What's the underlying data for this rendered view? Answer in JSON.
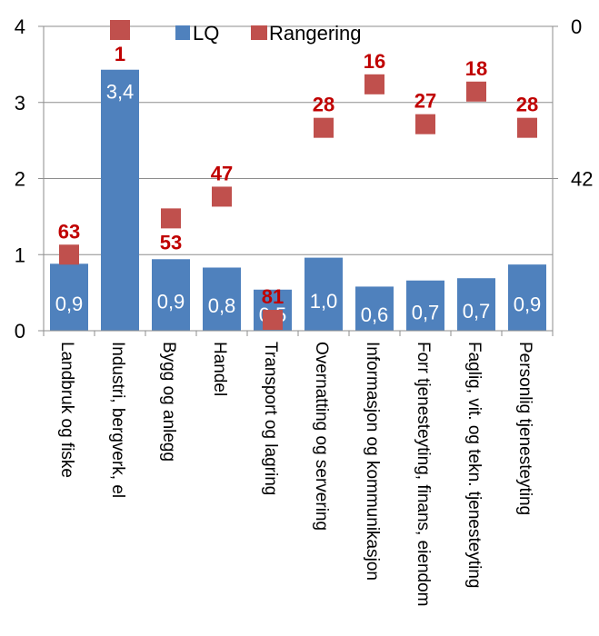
{
  "chart_data": {
    "type": "bar",
    "categories": [
      "Landbruk og fiske",
      "Industri, bergverk, el",
      "Bygg og anlegg",
      "Handel",
      "Transport og lagring",
      "Overnatting og servering",
      "Informasjon og kommunikasjon",
      "Forr tjenesteyting, finans, eiendom",
      "Faglig, vit. og tekn. tjenesteyting",
      "Personlig tjenesteyting"
    ],
    "series": [
      {
        "name": "LQ",
        "type": "bar",
        "axis": "left",
        "values": [
          0.88,
          3.43,
          0.94,
          0.83,
          0.54,
          0.96,
          0.58,
          0.66,
          0.69,
          0.87
        ],
        "labels": [
          "0,9",
          "3,4",
          "0,9",
          "0,8",
          "0,5",
          "1,0",
          "0,6",
          "0,7",
          "0,7",
          "0,9"
        ],
        "color": "#4f81bd"
      },
      {
        "name": "Rangering",
        "type": "scatter",
        "axis": "right",
        "values": [
          63,
          1,
          53,
          47,
          81,
          28,
          16,
          27,
          18,
          28
        ],
        "labels": [
          "63",
          "1",
          "53",
          "47",
          "81",
          "28",
          "16",
          "27",
          "18",
          "28"
        ],
        "color": "#c0504d",
        "label_color": "#c00000"
      }
    ],
    "left_axis": {
      "min": 0,
      "max": 4,
      "ticks": [
        "0",
        "1",
        "2",
        "3",
        "4"
      ]
    },
    "right_axis": {
      "reversed": true,
      "min": 0,
      "max": 84,
      "ticks": [
        "0",
        "42"
      ]
    },
    "legend": {
      "position": "top-center",
      "entries": [
        "LQ",
        "Rangering"
      ]
    },
    "grid": "horizontal"
  }
}
